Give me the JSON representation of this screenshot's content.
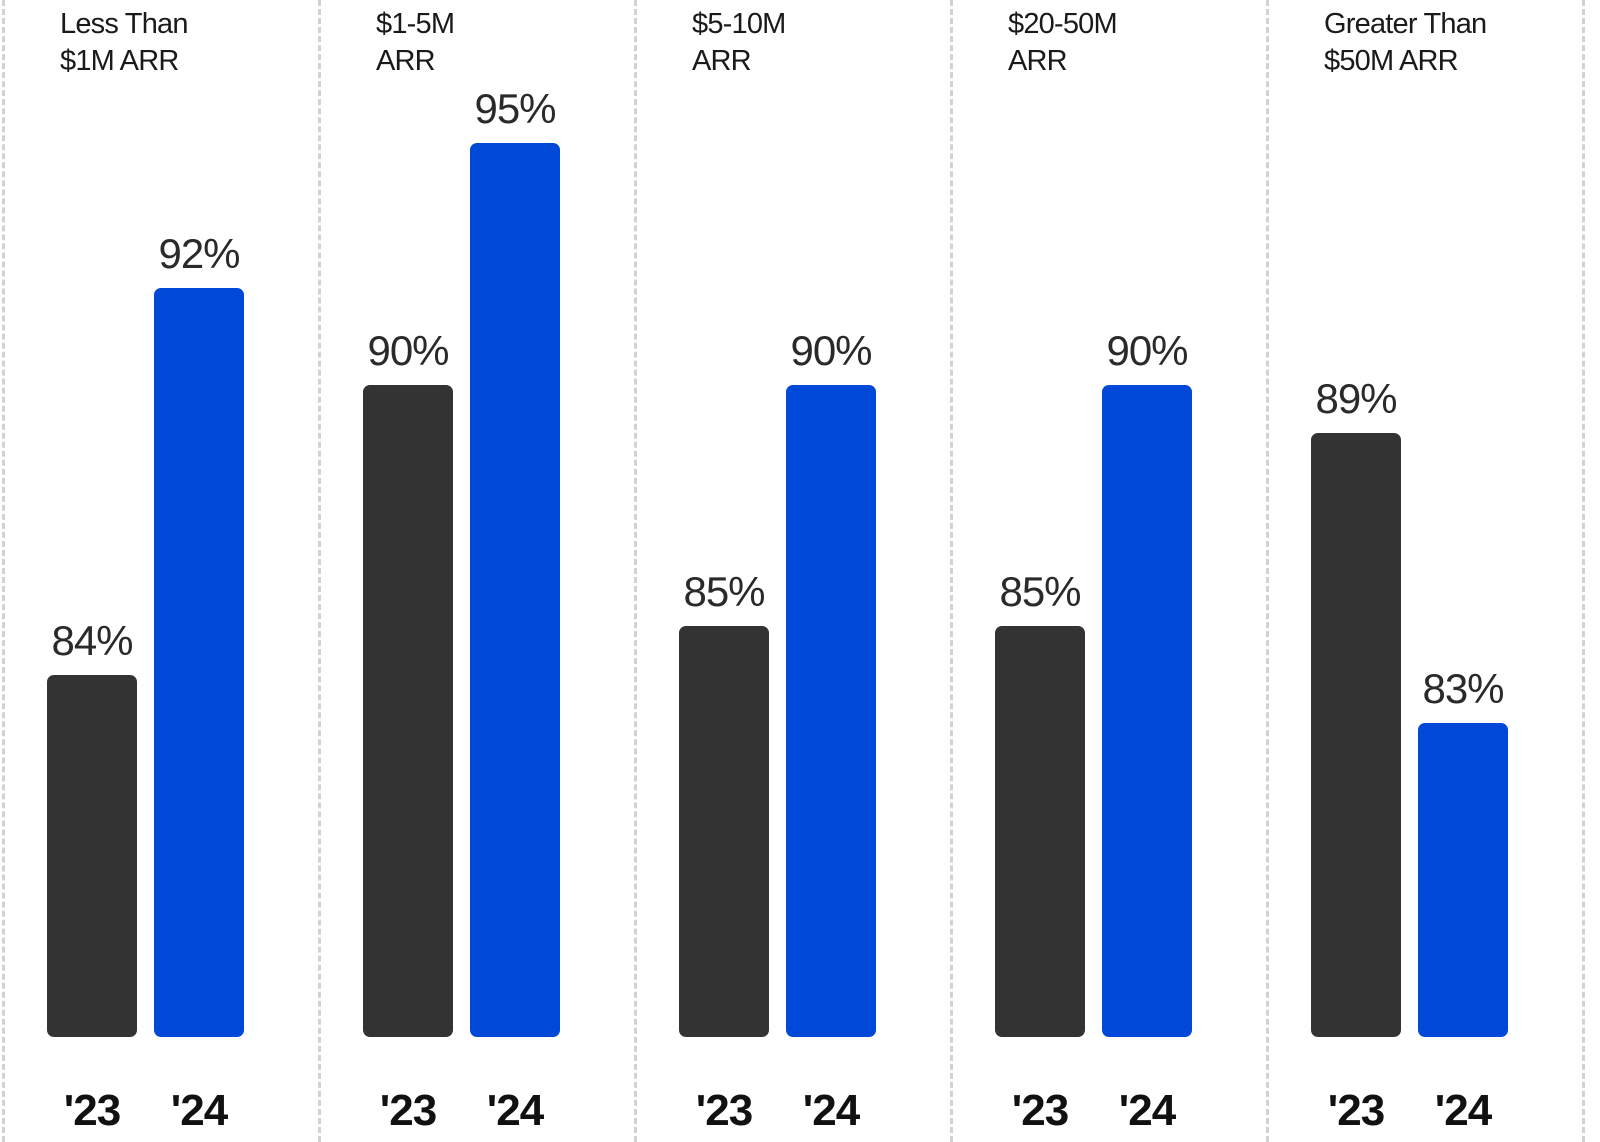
{
  "chart_data": {
    "type": "bar",
    "groups": [
      {
        "title_lines": [
          "Less Than",
          "$1M ARR"
        ],
        "categories": [
          "'23",
          "'24"
        ],
        "values": [
          84,
          92
        ],
        "labels": [
          "84%",
          "92%"
        ]
      },
      {
        "title_lines": [
          "$1-5M",
          "ARR"
        ],
        "categories": [
          "'23",
          "'24"
        ],
        "values": [
          90,
          95
        ],
        "labels": [
          "90%",
          "95%"
        ]
      },
      {
        "title_lines": [
          "$5-10M",
          "ARR"
        ],
        "categories": [
          "'23",
          "'24"
        ],
        "values": [
          85,
          90
        ],
        "labels": [
          "85%",
          "90%"
        ]
      },
      {
        "title_lines": [
          "$20-50M",
          "ARR"
        ],
        "categories": [
          "'23",
          "'24"
        ],
        "values": [
          85,
          90
        ],
        "labels": [
          "85%",
          "90%"
        ]
      },
      {
        "title_lines": [
          "Greater Than",
          "$50M ARR"
        ],
        "categories": [
          "'23",
          "'24"
        ],
        "values": [
          89,
          83
        ],
        "labels": [
          "89%",
          "83%"
        ]
      }
    ],
    "series_colors": [
      "#333333",
      "#0049d8"
    ],
    "grid": false
  }
}
